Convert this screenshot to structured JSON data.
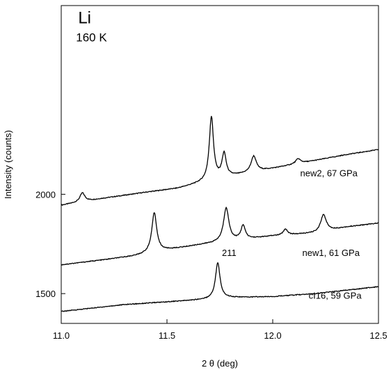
{
  "chart_data": {
    "type": "line",
    "title": "",
    "xlabel": "2 θ (deg)",
    "ylabel": "Intensity (counts)",
    "xlim": [
      11.0,
      12.5
    ],
    "ylim": [
      1350,
      2950
    ],
    "xticks": [
      11.0,
      11.5,
      12.0,
      12.5
    ],
    "xtick_labels": [
      "11.0",
      "11.5",
      "12.0",
      "12.5"
    ],
    "yticks": [
      1500,
      2000
    ],
    "ytick_labels": [
      "1500",
      "2000"
    ],
    "grid": false,
    "annotations": [
      {
        "text": "Li",
        "x": 11.08,
        "y": 2860,
        "size": "large"
      },
      {
        "text": "160 K",
        "x": 11.07,
        "y": 2770,
        "size": "medium"
      },
      {
        "text": "211",
        "x": 11.76,
        "y": 1690,
        "size": "small"
      }
    ],
    "series": [
      {
        "label": "new2, 67 GPa",
        "label_x": 12.13,
        "label_y": 2090,
        "baseline": [
          [
            11.0,
            1945
          ],
          [
            11.2,
            1980
          ],
          [
            11.4,
            2010
          ],
          [
            11.55,
            2030
          ],
          [
            11.65,
            2055
          ],
          [
            11.8,
            2090
          ],
          [
            12.0,
            2130
          ],
          [
            12.2,
            2170
          ],
          [
            12.35,
            2200
          ],
          [
            12.5,
            2225
          ]
        ],
        "peaks": [
          {
            "x": 11.1,
            "h": 45,
            "w": 0.014
          },
          {
            "x": 11.71,
            "h": 320,
            "w": 0.012
          },
          {
            "x": 11.77,
            "h": 120,
            "w": 0.012
          },
          {
            "x": 11.91,
            "h": 80,
            "w": 0.015
          },
          {
            "x": 12.12,
            "h": 25,
            "w": 0.014
          }
        ]
      },
      {
        "label": "new1, 61 GPa",
        "label_x": 12.14,
        "label_y": 1690,
        "baseline": [
          [
            11.0,
            1645
          ],
          [
            11.2,
            1670
          ],
          [
            11.35,
            1690
          ],
          [
            11.5,
            1720
          ],
          [
            11.65,
            1745
          ],
          [
            11.8,
            1765
          ],
          [
            12.0,
            1790
          ],
          [
            12.2,
            1805
          ],
          [
            12.35,
            1835
          ],
          [
            12.5,
            1855
          ]
        ],
        "peaks": [
          {
            "x": 11.44,
            "h": 200,
            "w": 0.014
          },
          {
            "x": 11.78,
            "h": 170,
            "w": 0.015
          },
          {
            "x": 11.86,
            "h": 70,
            "w": 0.012
          },
          {
            "x": 12.06,
            "h": 30,
            "w": 0.012
          },
          {
            "x": 12.24,
            "h": 85,
            "w": 0.016
          }
        ]
      },
      {
        "label": "cI16, 59 GPa",
        "label_x": 12.17,
        "label_y": 1475,
        "baseline": [
          [
            11.0,
            1410
          ],
          [
            11.3,
            1445
          ],
          [
            11.6,
            1465
          ],
          [
            11.8,
            1480
          ],
          [
            12.0,
            1485
          ],
          [
            12.2,
            1500
          ],
          [
            12.5,
            1535
          ]
        ],
        "peaks": [
          {
            "x": 11.74,
            "h": 180,
            "w": 0.013
          }
        ]
      }
    ]
  }
}
